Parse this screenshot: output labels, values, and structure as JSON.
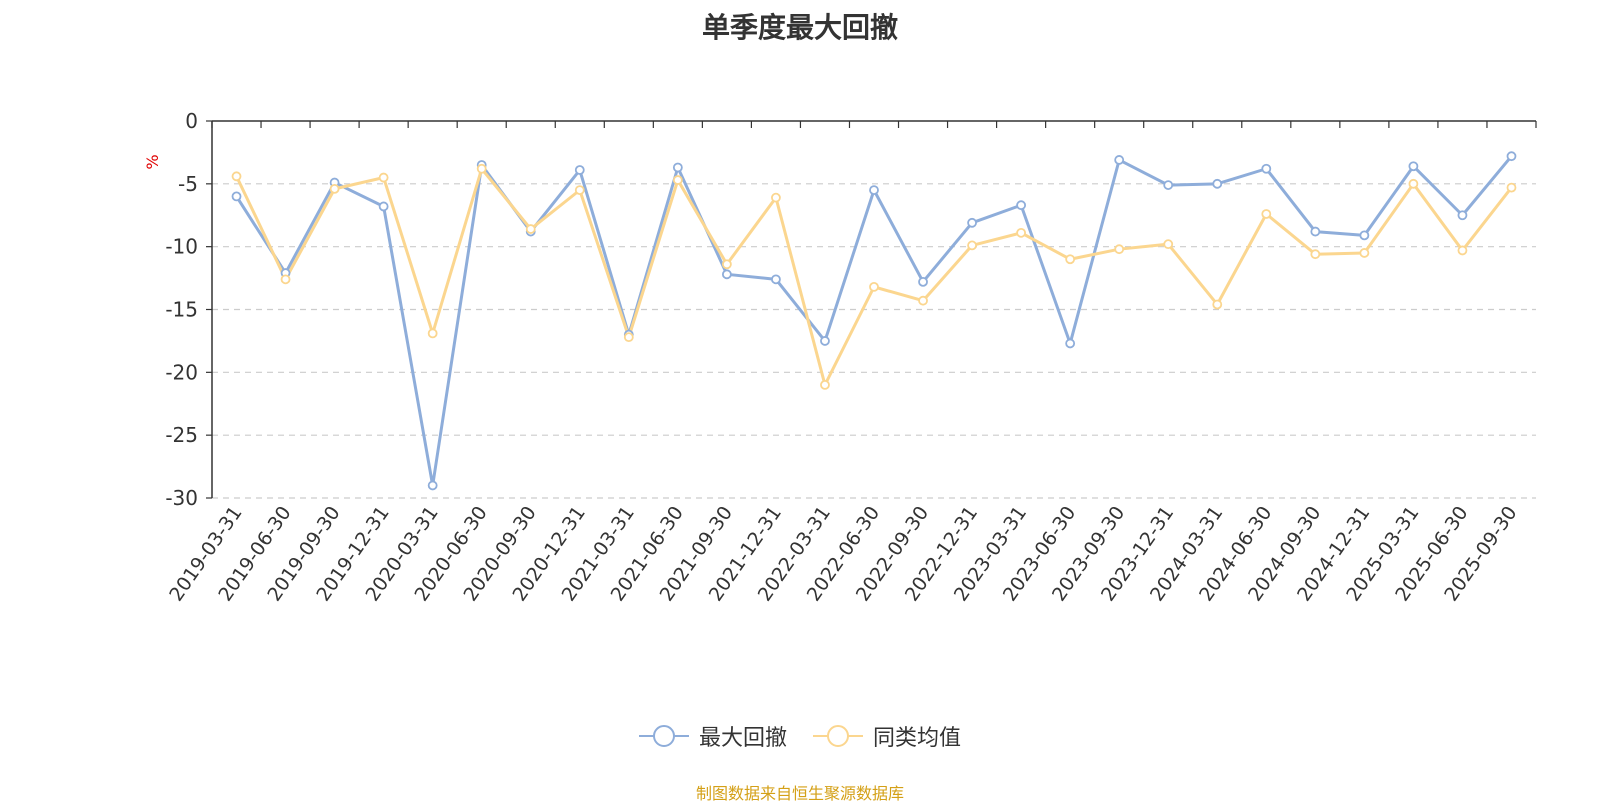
{
  "title": "单季度最大回撤",
  "source_note": "制图数据来自恒生聚源数据库",
  "chart_data": {
    "type": "line",
    "title": "单季度最大回撤",
    "ylabel": "%",
    "xlabel": "",
    "ylim": [
      -30,
      0
    ],
    "yticks": [
      0,
      -5,
      -10,
      -15,
      -20,
      -25,
      -30
    ],
    "grid": true,
    "legend_position": "bottom",
    "categories": [
      "2019-03-31",
      "2019-06-30",
      "2019-09-30",
      "2019-12-31",
      "2020-03-31",
      "2020-06-30",
      "2020-09-30",
      "2020-12-31",
      "2021-03-31",
      "2021-06-30",
      "2021-09-30",
      "2021-12-31",
      "2022-03-31",
      "2022-06-30",
      "2022-09-30",
      "2022-12-31",
      "2023-03-31",
      "2023-06-30",
      "2023-09-30",
      "2023-12-31",
      "2024-03-31",
      "2024-06-30",
      "2024-09-30",
      "2024-12-31",
      "2025-03-31",
      "2025-06-30",
      "2025-09-30"
    ],
    "series": [
      {
        "name": "最大回撤",
        "color": "#8eadda",
        "values": [
          -6.0,
          -12.1,
          -4.9,
          -6.8,
          -29.0,
          -3.5,
          -8.8,
          -3.9,
          -17.0,
          -3.7,
          -12.2,
          -12.6,
          -17.5,
          -5.5,
          -12.8,
          -8.1,
          -6.7,
          -17.7,
          -3.1,
          -5.1,
          -5.0,
          -3.8,
          -8.8,
          -9.1,
          -3.6,
          -7.5,
          -2.8
        ]
      },
      {
        "name": "同类均值",
        "color": "#fbd68f",
        "values": [
          -4.4,
          -12.6,
          -5.4,
          -4.5,
          -16.9,
          -3.8,
          -8.6,
          -5.5,
          -17.2,
          -4.7,
          -11.4,
          -6.1,
          -21.0,
          -13.2,
          -14.3,
          -9.9,
          -8.9,
          -11.0,
          -10.2,
          -9.8,
          -14.6,
          -7.4,
          -10.6,
          -10.5,
          -5.0,
          -10.3,
          -5.3
        ]
      }
    ]
  }
}
